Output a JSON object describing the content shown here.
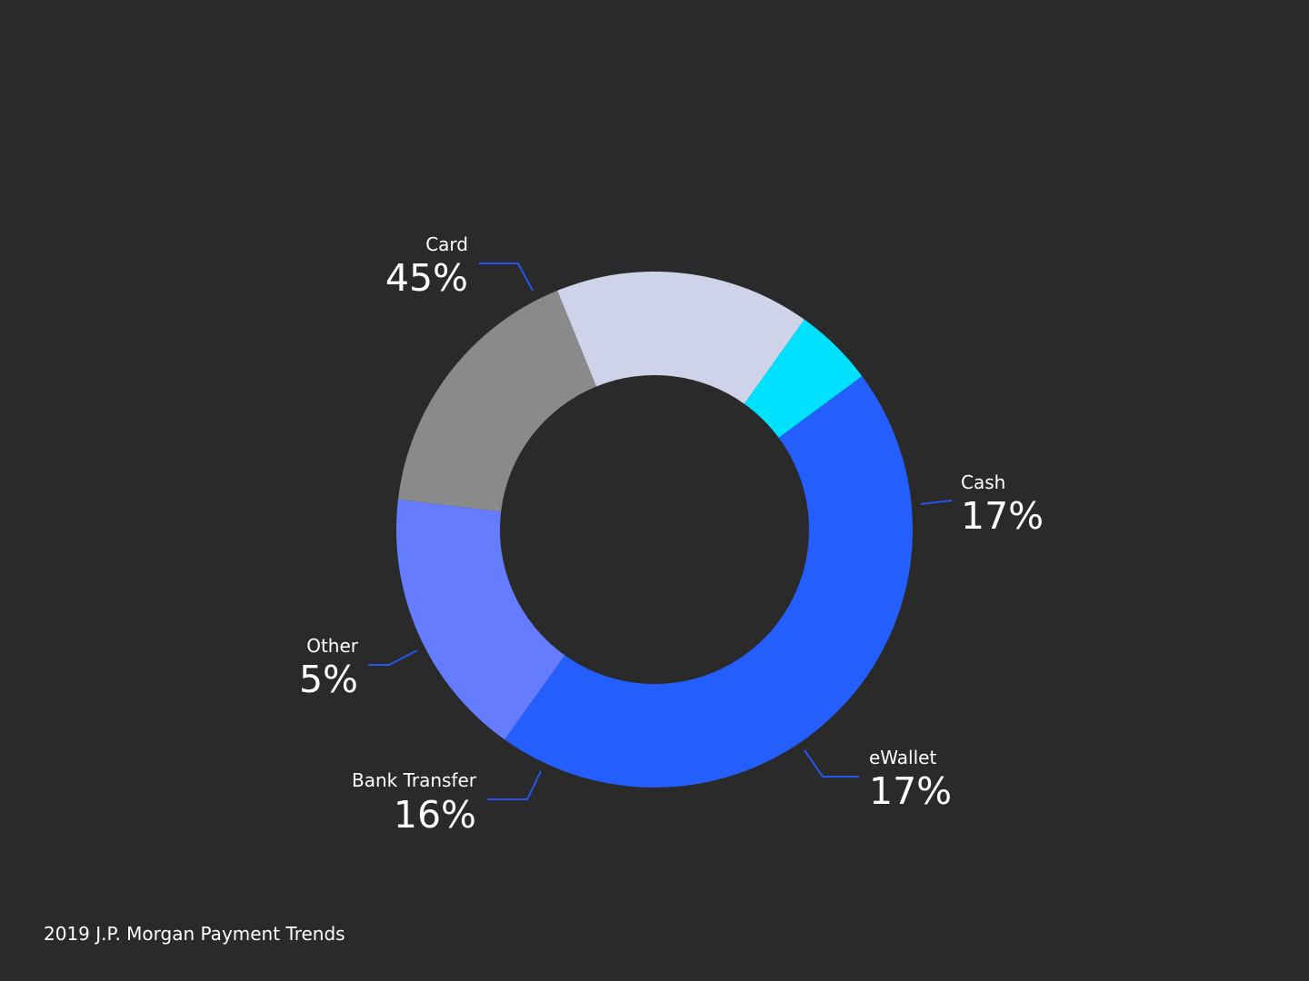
{
  "chart_data": {
    "type": "pie",
    "variant": "donut",
    "categories": [
      "Card",
      "Cash",
      "eWallet",
      "Bank Transfer",
      "Other"
    ],
    "values": [
      45,
      17,
      17,
      16,
      5
    ],
    "value_labels": [
      "45%",
      "17%",
      "17%",
      "16%",
      "5%"
    ],
    "colors": [
      "#245efc",
      "#667cff",
      "#8a8a8a",
      "#ced3ea",
      "#00e1fd"
    ],
    "leader_color": "#2456f0",
    "title": "",
    "legend": "none"
  },
  "footer": {
    "source": "2019 J.P. Morgan Payment Trends"
  }
}
